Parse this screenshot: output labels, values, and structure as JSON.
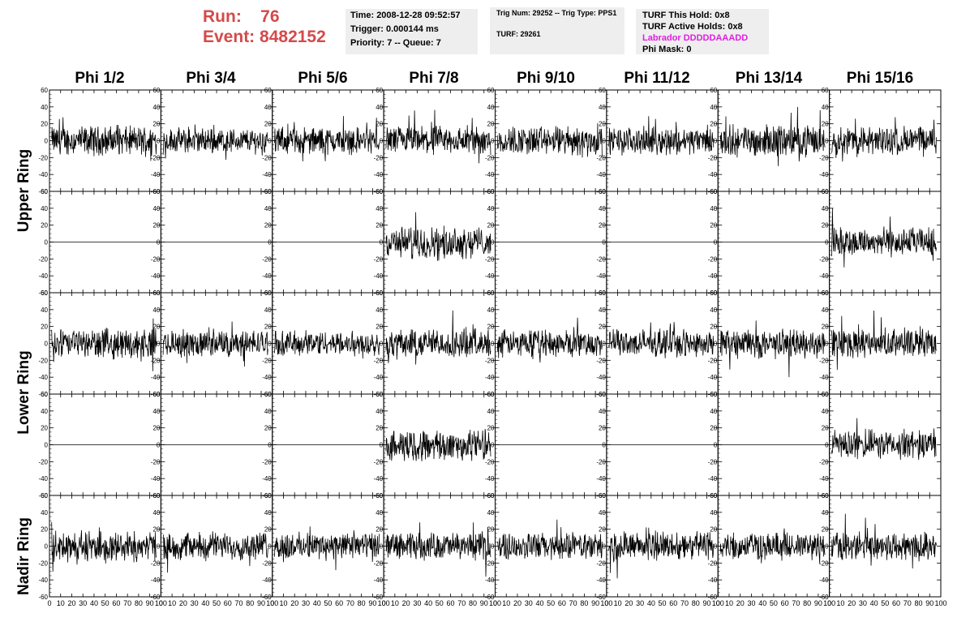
{
  "header": {
    "run_label": "Run:",
    "run_value": "76",
    "event_label": "Event:",
    "event_value": "8482152"
  },
  "info_box_1": {
    "time": "Time: 2008-12-28 09:52:57",
    "trigger": "Trigger: 0.000144 ms",
    "priority": "Priority: 7 -- Queue: 7"
  },
  "info_box_2": {
    "trig": "Trig Num: 29252 -- Trig Type: PPS1",
    "turf": "TURF: 29261"
  },
  "info_box_3": {
    "this_hold": "TURF This Hold: 0x8",
    "active_holds": "TURF Active Holds: 0x8",
    "labrador": "Labrador DDDDDAAADD",
    "phi_mask": "Phi Mask: 0"
  },
  "columns": [
    "Phi 1/2",
    "Phi 3/4",
    "Phi 5/6",
    "Phi 7/8",
    "Phi 9/10",
    "Phi 11/12",
    "Phi 13/14",
    "Phi 15/16"
  ],
  "rings": [
    "Upper Ring",
    "Lower Ring",
    "Nadir Ring"
  ],
  "chart_data": {
    "type": "line",
    "xlim": [
      0,
      100
    ],
    "ylim": [
      -60,
      60
    ],
    "x_ticks": [
      "0",
      "10",
      "20",
      "30",
      "40",
      "50",
      "60",
      "70",
      "80",
      "90",
      "100"
    ],
    "y_ticks": [
      "60",
      "40",
      "20",
      "0",
      "-20",
      "-40",
      "-60"
    ],
    "grid": false,
    "panel_rows": 5,
    "panel_cols": 8,
    "panel_amplitudes": [
      [
        14,
        12,
        13,
        14,
        14,
        13,
        15,
        14
      ],
      [
        0,
        0,
        0,
        15,
        0,
        0,
        0,
        14
      ],
      [
        14,
        13,
        12,
        14,
        13,
        13,
        14,
        14
      ],
      [
        0,
        0,
        0,
        15,
        0,
        0,
        0,
        14
      ],
      [
        15,
        13,
        13,
        13,
        13,
        14,
        13,
        14
      ]
    ],
    "colors": {
      "trace": "#000000",
      "frame": "#000000"
    }
  }
}
